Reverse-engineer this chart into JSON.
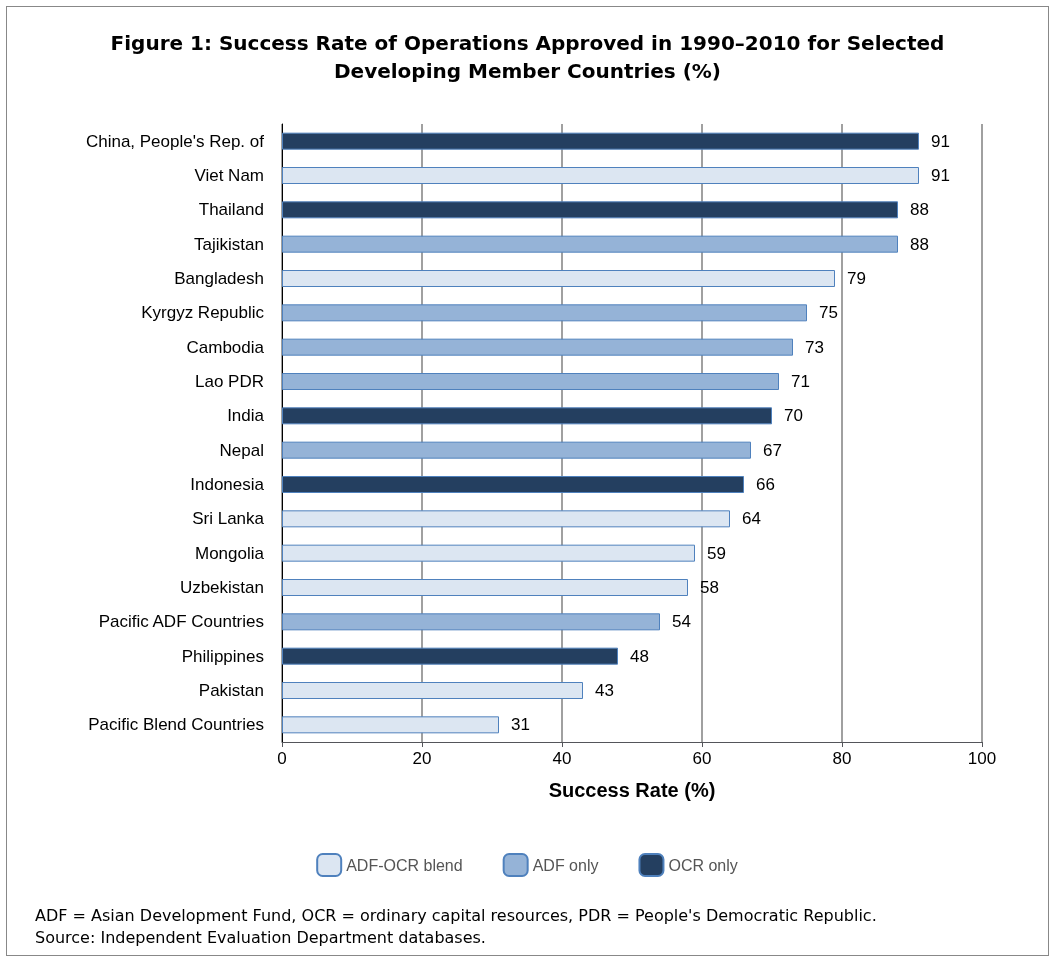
{
  "chart_data": {
    "type": "bar",
    "orientation": "horizontal",
    "title": "Figure 1: Success Rate of Operations Approved in 1990–2010 for Selected Developing Member Countries (%)",
    "xlabel": "Success Rate (%)",
    "categories": [
      "China, People's Rep. of",
      "Viet Nam",
      "Thailand",
      "Tajikistan",
      "Bangladesh",
      "Kyrgyz Republic",
      "Cambodia",
      "Lao PDR",
      "India",
      "Nepal",
      "Indonesia",
      "Sri Lanka",
      "Mongolia",
      "Uzbekistan",
      "Pacific ADF Countries",
      "Philippines",
      "Pakistan",
      "Pacific Blend Countries"
    ],
    "series": [
      {
        "name": "ADF-OCR blend",
        "color": "#dce6f2",
        "values": [
          null,
          91,
          null,
          null,
          79,
          null,
          null,
          null,
          null,
          null,
          null,
          64,
          59,
          58,
          null,
          null,
          43,
          31
        ]
      },
      {
        "name": "ADF only",
        "color": "#95b3d7",
        "values": [
          null,
          null,
          null,
          88,
          null,
          75,
          73,
          71,
          null,
          67,
          null,
          null,
          null,
          null,
          54,
          null,
          null,
          null
        ]
      },
      {
        "name": "OCR only",
        "color": "#243f60",
        "values": [
          91,
          null,
          88,
          null,
          null,
          null,
          null,
          null,
          70,
          null,
          66,
          null,
          null,
          null,
          null,
          48,
          null,
          null
        ]
      }
    ],
    "xlim": [
      0,
      100
    ],
    "xticks": [
      0,
      20,
      40,
      60,
      80,
      100
    ],
    "grid": "x",
    "legend": "bottom",
    "data_labels": true,
    "annotations": [
      "ADF = Asian Development Fund, OCR = ordinary capital resources, PDR = People's Democratic Republic.",
      "Source: Independent Evaluation Department databases."
    ]
  }
}
